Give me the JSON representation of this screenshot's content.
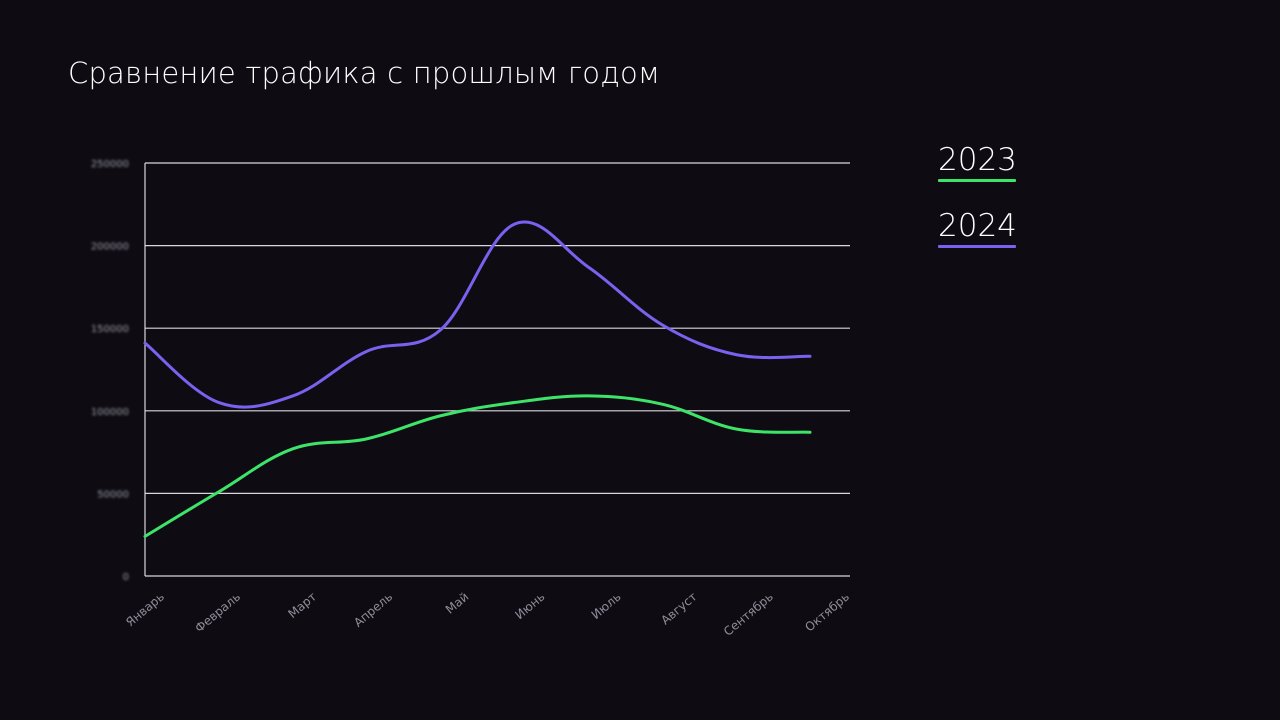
{
  "chart_data": {
    "type": "line",
    "title": "Сравнение трафика с прошлым годом",
    "xlabel": "",
    "ylabel": "",
    "categories": [
      "Январь",
      "Февраль",
      "Март",
      "Апрель",
      "Май",
      "Июнь",
      "Июль",
      "Август",
      "Сентябрь",
      "Октябрь"
    ],
    "yticks": [
      "0",
      "50000",
      "100000",
      "150000",
      "200000",
      "250000"
    ],
    "ylim": [
      0,
      250000
    ],
    "grid": true,
    "legend_position": "right",
    "series": [
      {
        "name": "2023",
        "color": "#3ee46a",
        "values": [
          24000,
          51000,
          77000,
          83000,
          97000,
          105000,
          109000,
          104000,
          89000,
          87000
        ]
      },
      {
        "name": "2024",
        "color": "#7b61f0",
        "values": [
          141000,
          105000,
          109000,
          136000,
          149000,
          213000,
          187000,
          152000,
          134000,
          133000
        ]
      }
    ]
  }
}
